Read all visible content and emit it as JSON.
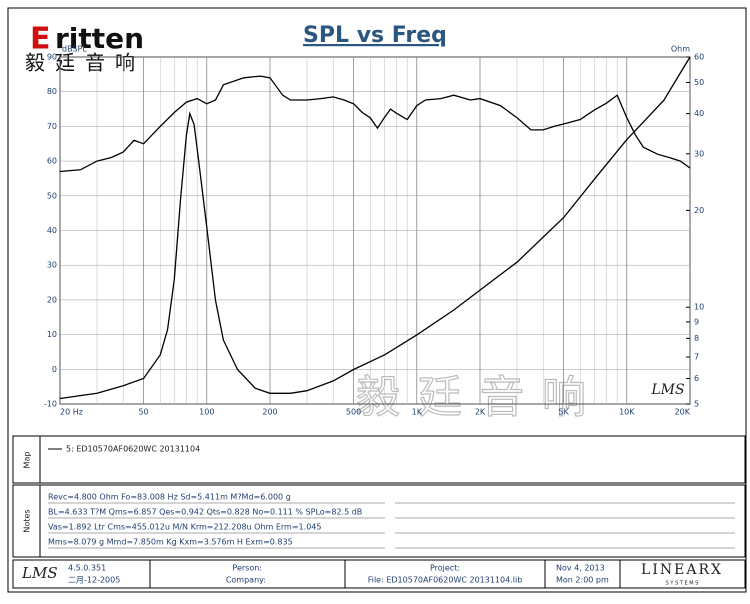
{
  "logo": {
    "brand": "ritten",
    "initial": "E",
    "chinese": "毅廷音响"
  },
  "watermark": "毅廷音响",
  "chart_data": {
    "type": "line",
    "title": "SPL vs Freq",
    "y_label": "dBSPL",
    "y2_label": "Ohm",
    "badge": "LMS",
    "xscale": "log",
    "y2scale": "log",
    "grid": true,
    "xlim": [
      20,
      20000
    ],
    "xticks": [
      {
        "value": 20,
        "label": "20 Hz"
      },
      50,
      100,
      200,
      500,
      {
        "value": 1000,
        "label": "1K"
      },
      {
        "value": 2000,
        "label": "2K"
      },
      {
        "value": 5000,
        "label": "5K"
      },
      {
        "value": 10000,
        "label": "10K"
      },
      {
        "value": 20000,
        "label": "20K"
      }
    ],
    "xminor": [
      30,
      40,
      60,
      70,
      80,
      90,
      300,
      400,
      600,
      700,
      800,
      900,
      3000,
      4000,
      6000,
      7000,
      8000,
      9000
    ],
    "ylim": [
      -10,
      90
    ],
    "yticks": [
      -10,
      0,
      10,
      20,
      30,
      40,
      50,
      60,
      70,
      80,
      90
    ],
    "y2lim": [
      5,
      60
    ],
    "y2ticks": [
      5,
      6,
      7,
      8,
      9,
      10,
      20,
      30,
      40,
      50,
      60
    ],
    "series": [
      {
        "name": "5: ED10570AF0620WC  20131104",
        "color": "#000000",
        "x": [
          20,
          25,
          30,
          35,
          40,
          45,
          50,
          60,
          70,
          80,
          90,
          100,
          110,
          120,
          150,
          180,
          200,
          230,
          250,
          300,
          350,
          400,
          450,
          500,
          550,
          600,
          650,
          700,
          750,
          800,
          900,
          1000,
          1100,
          1300,
          1500,
          1800,
          2000,
          2500,
          3000,
          3500,
          4000,
          4500,
          5000,
          6000,
          7000,
          8000,
          9000,
          10000,
          11000,
          12000,
          14000,
          16000,
          18000,
          20000
        ],
        "values": [
          57,
          57.5,
          60,
          61,
          62.6,
          66,
          65,
          70,
          74,
          77,
          78,
          76.5,
          77.6,
          82,
          84,
          84.5,
          84,
          79,
          77.6,
          77.6,
          78,
          78.5,
          77.6,
          76.5,
          74,
          72.5,
          69.5,
          72.5,
          75,
          73.8,
          72,
          76,
          77.6,
          78,
          79,
          77.6,
          78,
          76,
          72.5,
          69,
          69,
          70,
          70.7,
          72,
          74.7,
          76.7,
          79,
          72.5,
          67.5,
          64,
          62,
          61,
          60,
          58
        ]
      },
      {
        "axis": "y2",
        "color": "#000000",
        "x": [
          20,
          30,
          40,
          50,
          60,
          65,
          70,
          75,
          80,
          83,
          87,
          90,
          100,
          110,
          120,
          140,
          170,
          200,
          250,
          300,
          400,
          500,
          700,
          1000,
          1500,
          2000,
          3000,
          5000,
          7000,
          10000,
          15000,
          20000
        ],
        "values": [
          5.2,
          5.4,
          5.7,
          6.0,
          7.1,
          8.5,
          12.2,
          21.6,
          34.3,
          40,
          37,
          31.1,
          17.7,
          10.5,
          7.9,
          6.4,
          5.6,
          5.4,
          5.4,
          5.5,
          5.9,
          6.4,
          7.1,
          8.2,
          9.8,
          11.3,
          13.8,
          19.0,
          25,
          33.2,
          44,
          60
        ]
      }
    ]
  },
  "map": {
    "label": "Map"
  },
  "notes": {
    "label": "Notes",
    "lines": [
      "Revc=4.800 Ohm  Fo=83.008 Hz  Sd=5.411m  M?Md=6.000 g",
      "BL=4.633 T?M  Qms=6.857  Qes=0.942  Qts=0.828  No=0.111 %  SPLo=82.5 dB",
      "Vas=1.892 Ltr  Cms=455.012u M/N  Krm=212.208u Ohm  Erm=1.045",
      "Mms=8.079 g  Mmd=7.850m Kg  Kxm=3.576m H  Exm=0.835"
    ]
  },
  "footer": {
    "lms": "LMS",
    "version": "4.5.0.351",
    "build_date": "二月-12-2005",
    "person": "Person:",
    "company": "Company:",
    "project": "Project:",
    "file": "File: ED10570AF0620WC 20131104.lib",
    "date": "Nov  4, 2013",
    "time": "Mon  2:00 pm",
    "vendor": "LINEARX",
    "vendor_sub": "S Y S T E M S"
  }
}
